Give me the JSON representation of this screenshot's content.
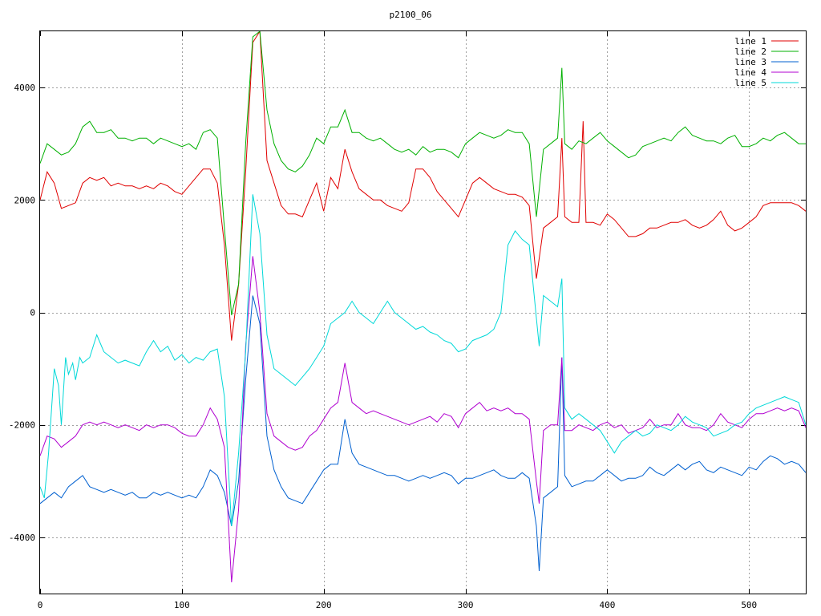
{
  "chart_data": {
    "type": "line",
    "title": "p2100_06",
    "xlabel": "",
    "ylabel": "",
    "xlim": [
      0,
      540
    ],
    "ylim": [
      -5000,
      5000
    ],
    "xticks": [
      0,
      100,
      200,
      300,
      400,
      500
    ],
    "yticks": [
      -4000,
      -2000,
      0,
      2000,
      4000
    ],
    "grid": true,
    "legend_position": "top-right",
    "colors": {
      "line 1": "#e00000",
      "line 2": "#00b000",
      "line 3": "#0060d0",
      "line 4": "#b000d0",
      "line 5": "#00d8d8"
    },
    "series": [
      {
        "name": "line 1",
        "x": [
          0,
          5,
          10,
          15,
          20,
          25,
          30,
          35,
          40,
          45,
          50,
          55,
          60,
          65,
          70,
          75,
          80,
          85,
          90,
          95,
          100,
          105,
          110,
          115,
          120,
          125,
          130,
          135,
          140,
          145,
          150,
          155,
          160,
          165,
          170,
          175,
          180,
          185,
          190,
          195,
          200,
          205,
          210,
          215,
          220,
          225,
          230,
          235,
          240,
          245,
          250,
          255,
          260,
          265,
          270,
          275,
          280,
          285,
          290,
          295,
          300,
          305,
          310,
          315,
          320,
          325,
          330,
          335,
          340,
          345,
          350,
          355,
          360,
          365,
          368,
          370,
          375,
          380,
          383,
          385,
          390,
          395,
          400,
          405,
          410,
          415,
          420,
          425,
          430,
          435,
          440,
          445,
          450,
          455,
          460,
          465,
          470,
          475,
          480,
          485,
          490,
          495,
          500,
          505,
          510,
          515,
          520,
          525,
          530,
          535,
          540
        ],
        "y": [
          2000,
          2500,
          2300,
          1850,
          1900,
          1950,
          2300,
          2400,
          2350,
          2400,
          2250,
          2300,
          2250,
          2250,
          2200,
          2250,
          2200,
          2300,
          2250,
          2150,
          2100,
          2250,
          2400,
          2550,
          2550,
          2300,
          1200,
          -500,
          500,
          2500,
          4800,
          5000,
          2700,
          2300,
          1900,
          1750,
          1750,
          1700,
          2000,
          2300,
          1800,
          2400,
          2200,
          2900,
          2500,
          2200,
          2100,
          2000,
          2000,
          1900,
          1850,
          1800,
          1950,
          2550,
          2550,
          2400,
          2150,
          2000,
          1850,
          1700,
          2000,
          2300,
          2400,
          2300,
          2200,
          2150,
          2100,
          2100,
          2050,
          1900,
          600,
          1500,
          1600,
          1700,
          3100,
          1700,
          1600,
          1600,
          3400,
          1600,
          1600,
          1550,
          1750,
          1650,
          1500,
          1350,
          1350,
          1400,
          1500,
          1500,
          1550,
          1600,
          1600,
          1650,
          1550,
          1500,
          1550,
          1650,
          1800,
          1550,
          1450,
          1500,
          1600,
          1700,
          1900,
          1950,
          1950,
          1950,
          1950,
          1900,
          1800
        ]
      },
      {
        "name": "line 2",
        "x": [
          0,
          5,
          10,
          15,
          20,
          25,
          30,
          35,
          40,
          45,
          50,
          55,
          60,
          65,
          70,
          75,
          80,
          85,
          90,
          95,
          100,
          105,
          110,
          115,
          120,
          125,
          130,
          135,
          140,
          145,
          150,
          155,
          160,
          165,
          170,
          175,
          180,
          185,
          190,
          195,
          200,
          205,
          210,
          215,
          220,
          225,
          230,
          235,
          240,
          245,
          250,
          255,
          260,
          265,
          270,
          275,
          280,
          285,
          290,
          295,
          300,
          305,
          310,
          315,
          320,
          325,
          330,
          335,
          340,
          345,
          350,
          355,
          360,
          365,
          368,
          370,
          375,
          380,
          385,
          390,
          395,
          400,
          405,
          410,
          415,
          420,
          425,
          430,
          435,
          440,
          445,
          450,
          455,
          460,
          465,
          470,
          475,
          480,
          485,
          490,
          495,
          500,
          505,
          510,
          515,
          520,
          525,
          530,
          535,
          540
        ],
        "y": [
          2650,
          3000,
          2900,
          2800,
          2850,
          3000,
          3300,
          3400,
          3200,
          3200,
          3250,
          3100,
          3100,
          3050,
          3100,
          3100,
          3000,
          3100,
          3050,
          3000,
          2950,
          3000,
          2900,
          3200,
          3250,
          3100,
          1500,
          -50,
          500,
          3000,
          4900,
          5000,
          3600,
          3000,
          2700,
          2550,
          2500,
          2600,
          2800,
          3100,
          3000,
          3300,
          3300,
          3600,
          3200,
          3200,
          3100,
          3050,
          3100,
          3000,
          2900,
          2850,
          2900,
          2800,
          2950,
          2850,
          2900,
          2900,
          2850,
          2750,
          3000,
          3100,
          3200,
          3150,
          3100,
          3150,
          3250,
          3200,
          3200,
          3000,
          1700,
          2900,
          3000,
          3100,
          4350,
          3000,
          2900,
          3050,
          3000,
          3100,
          3200,
          3050,
          2950,
          2850,
          2750,
          2800,
          2950,
          3000,
          3050,
          3100,
          3050,
          3200,
          3300,
          3150,
          3100,
          3050,
          3050,
          3000,
          3100,
          3150,
          2950,
          2950,
          3000,
          3100,
          3050,
          3150,
          3200,
          3100,
          3000,
          3000
        ]
      },
      {
        "name": "line 3",
        "x": [
          0,
          5,
          10,
          15,
          20,
          25,
          30,
          35,
          40,
          45,
          50,
          55,
          60,
          65,
          70,
          75,
          80,
          85,
          90,
          95,
          100,
          105,
          110,
          115,
          120,
          125,
          130,
          135,
          140,
          145,
          150,
          155,
          160,
          165,
          170,
          175,
          180,
          185,
          190,
          195,
          200,
          205,
          210,
          215,
          220,
          225,
          230,
          235,
          240,
          245,
          250,
          255,
          260,
          265,
          270,
          275,
          280,
          285,
          290,
          295,
          300,
          305,
          310,
          315,
          320,
          325,
          330,
          335,
          340,
          345,
          350,
          352,
          355,
          360,
          365,
          368,
          370,
          375,
          380,
          385,
          390,
          395,
          400,
          405,
          410,
          415,
          420,
          425,
          430,
          435,
          440,
          445,
          450,
          455,
          460,
          465,
          470,
          475,
          480,
          485,
          490,
          495,
          500,
          505,
          510,
          515,
          520,
          525,
          530,
          535,
          540
        ],
        "y": [
          -3400,
          -3300,
          -3200,
          -3300,
          -3100,
          -3000,
          -2900,
          -3100,
          -3150,
          -3200,
          -3150,
          -3200,
          -3250,
          -3200,
          -3300,
          -3300,
          -3200,
          -3250,
          -3200,
          -3250,
          -3300,
          -3250,
          -3300,
          -3100,
          -2800,
          -2900,
          -3200,
          -3800,
          -3000,
          -1200,
          300,
          -200,
          -2200,
          -2800,
          -3100,
          -3300,
          -3350,
          -3400,
          -3200,
          -3000,
          -2800,
          -2700,
          -2700,
          -1900,
          -2500,
          -2700,
          -2750,
          -2800,
          -2850,
          -2900,
          -2900,
          -2950,
          -3000,
          -2950,
          -2900,
          -2950,
          -2900,
          -2850,
          -2900,
          -3050,
          -2950,
          -2950,
          -2900,
          -2850,
          -2800,
          -2900,
          -2950,
          -2950,
          -2850,
          -2950,
          -3800,
          -4600,
          -3300,
          -3200,
          -3100,
          -800,
          -2900,
          -3100,
          -3050,
          -3000,
          -3000,
          -2900,
          -2800,
          -2900,
          -3000,
          -2950,
          -2950,
          -2900,
          -2750,
          -2850,
          -2900,
          -2800,
          -2700,
          -2800,
          -2700,
          -2650,
          -2800,
          -2850,
          -2750,
          -2800,
          -2850,
          -2900,
          -2750,
          -2800,
          -2650,
          -2550,
          -2600,
          -2700,
          -2650,
          -2700,
          -2850
        ]
      },
      {
        "name": "line 4",
        "x": [
          0,
          5,
          10,
          15,
          20,
          25,
          30,
          35,
          40,
          45,
          50,
          55,
          60,
          65,
          70,
          75,
          80,
          85,
          90,
          95,
          100,
          105,
          110,
          115,
          120,
          125,
          130,
          135,
          140,
          145,
          150,
          155,
          160,
          165,
          170,
          175,
          180,
          185,
          190,
          195,
          200,
          205,
          210,
          215,
          220,
          225,
          230,
          235,
          240,
          245,
          250,
          255,
          260,
          265,
          270,
          275,
          280,
          285,
          290,
          295,
          300,
          305,
          310,
          315,
          320,
          325,
          330,
          335,
          340,
          345,
          350,
          352,
          355,
          360,
          365,
          368,
          370,
          375,
          380,
          385,
          390,
          395,
          400,
          405,
          410,
          415,
          420,
          425,
          430,
          435,
          440,
          445,
          450,
          455,
          460,
          465,
          470,
          475,
          480,
          485,
          490,
          495,
          500,
          505,
          510,
          515,
          520,
          525,
          530,
          535,
          540
        ],
        "y": [
          -2550,
          -2200,
          -2250,
          -2400,
          -2300,
          -2200,
          -2000,
          -1950,
          -2000,
          -1950,
          -2000,
          -2050,
          -2000,
          -2050,
          -2100,
          -2000,
          -2050,
          -2000,
          -2000,
          -2050,
          -2150,
          -2200,
          -2200,
          -2000,
          -1700,
          -1900,
          -2400,
          -4800,
          -3500,
          -600,
          1000,
          0,
          -1800,
          -2200,
          -2300,
          -2400,
          -2450,
          -2400,
          -2200,
          -2100,
          -1900,
          -1700,
          -1600,
          -900,
          -1600,
          -1700,
          -1800,
          -1750,
          -1800,
          -1850,
          -1900,
          -1950,
          -2000,
          -1950,
          -1900,
          -1850,
          -1950,
          -1800,
          -1850,
          -2050,
          -1800,
          -1700,
          -1600,
          -1750,
          -1700,
          -1750,
          -1700,
          -1800,
          -1800,
          -1900,
          -3000,
          -3400,
          -2100,
          -2000,
          -2000,
          -800,
          -2100,
          -2100,
          -2000,
          -2050,
          -2100,
          -2000,
          -1950,
          -2050,
          -2000,
          -2150,
          -2100,
          -2050,
          -1900,
          -2050,
          -2000,
          -2000,
          -1800,
          -2000,
          -2050,
          -2050,
          -2100,
          -2000,
          -1800,
          -1950,
          -2000,
          -2050,
          -1900,
          -1800,
          -1800,
          -1750,
          -1700,
          -1750,
          -1700,
          -1750,
          -2050
        ]
      },
      {
        "name": "line 5",
        "x": [
          0,
          3,
          6,
          10,
          13,
          15,
          18,
          20,
          23,
          25,
          28,
          30,
          35,
          40,
          45,
          50,
          55,
          60,
          65,
          70,
          75,
          80,
          85,
          90,
          95,
          100,
          105,
          110,
          115,
          120,
          125,
          130,
          135,
          140,
          145,
          150,
          155,
          160,
          165,
          170,
          175,
          180,
          185,
          190,
          195,
          200,
          205,
          210,
          215,
          220,
          225,
          230,
          235,
          240,
          245,
          250,
          255,
          260,
          265,
          270,
          275,
          280,
          285,
          290,
          295,
          300,
          305,
          310,
          315,
          320,
          325,
          330,
          335,
          340,
          345,
          350,
          352,
          355,
          360,
          365,
          368,
          370,
          375,
          380,
          385,
          390,
          395,
          400,
          405,
          410,
          415,
          420,
          425,
          430,
          435,
          440,
          445,
          450,
          455,
          460,
          465,
          470,
          475,
          480,
          485,
          490,
          495,
          500,
          505,
          510,
          515,
          520,
          525,
          530,
          535,
          540
        ],
        "y": [
          -3100,
          -3300,
          -2500,
          -1000,
          -1300,
          -2000,
          -800,
          -1100,
          -900,
          -1200,
          -800,
          -900,
          -800,
          -400,
          -700,
          -800,
          -900,
          -850,
          -900,
          -950,
          -700,
          -500,
          -700,
          -600,
          -850,
          -750,
          -900,
          -800,
          -850,
          -700,
          -650,
          -1500,
          -3800,
          -2500,
          -700,
          2100,
          1400,
          -400,
          -1000,
          -1100,
          -1200,
          -1300,
          -1150,
          -1000,
          -800,
          -600,
          -200,
          -100,
          0,
          200,
          0,
          -100,
          -200,
          0,
          200,
          0,
          -100,
          -200,
          -300,
          -250,
          -350,
          -400,
          -500,
          -550,
          -700,
          -650,
          -500,
          -450,
          -400,
          -300,
          0,
          1200,
          1450,
          1300,
          1200,
          -100,
          -600,
          300,
          200,
          100,
          600,
          -1700,
          -1900,
          -1800,
          -1900,
          -2000,
          -2100,
          -2300,
          -2500,
          -2300,
          -2200,
          -2100,
          -2200,
          -2150,
          -2000,
          -2050,
          -2100,
          -2000,
          -1850,
          -1950,
          -2000,
          -2050,
          -2200,
          -2150,
          -2100,
          -2000,
          -1950,
          -1800,
          -1700,
          -1650,
          -1600,
          -1550,
          -1500,
          -1550,
          -1600,
          -2000
        ]
      }
    ]
  }
}
